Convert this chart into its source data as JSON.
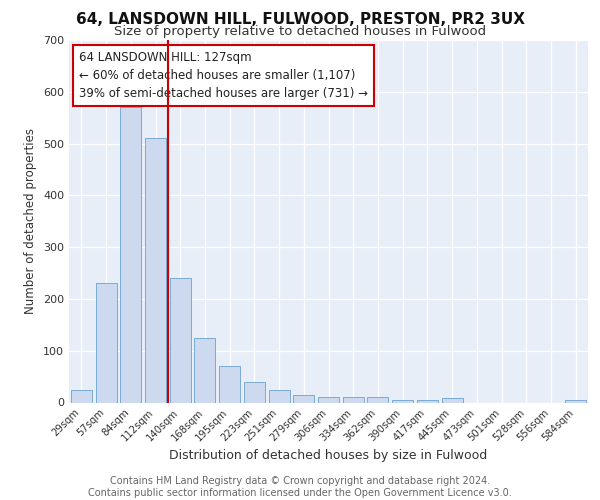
{
  "title1": "64, LANSDOWN HILL, FULWOOD, PRESTON, PR2 3UX",
  "title2": "Size of property relative to detached houses in Fulwood",
  "xlabel": "Distribution of detached houses by size in Fulwood",
  "ylabel": "Number of detached properties",
  "bar_labels": [
    "29sqm",
    "57sqm",
    "84sqm",
    "112sqm",
    "140sqm",
    "168sqm",
    "195sqm",
    "223sqm",
    "251sqm",
    "279sqm",
    "306sqm",
    "334sqm",
    "362sqm",
    "390sqm",
    "417sqm",
    "445sqm",
    "473sqm",
    "501sqm",
    "528sqm",
    "556sqm",
    "584sqm"
  ],
  "bar_values": [
    25,
    230,
    570,
    510,
    240,
    125,
    70,
    40,
    25,
    15,
    10,
    10,
    10,
    5,
    5,
    8,
    0,
    0,
    0,
    0,
    5
  ],
  "bar_color": "#ccd9ee",
  "bar_edge_color": "#7aaad4",
  "vline_color": "#cc0000",
  "annotation_text": "64 LANSDOWN HILL: 127sqm\n← 60% of detached houses are smaller (1,107)\n39% of semi-detached houses are larger (731) →",
  "annotation_box_color": "#ffffff",
  "annotation_box_edge": "#cc0000",
  "ylim": [
    0,
    700
  ],
  "yticks": [
    0,
    100,
    200,
    300,
    400,
    500,
    600,
    700
  ],
  "background_color": "#e8eef8",
  "footer_text": "Contains HM Land Registry data © Crown copyright and database right 2024.\nContains public sector information licensed under the Open Government Licence v3.0.",
  "title1_fontsize": 11,
  "title2_fontsize": 9.5,
  "xlabel_fontsize": 9,
  "ylabel_fontsize": 8.5,
  "annotation_fontsize": 8.5,
  "footer_fontsize": 7
}
